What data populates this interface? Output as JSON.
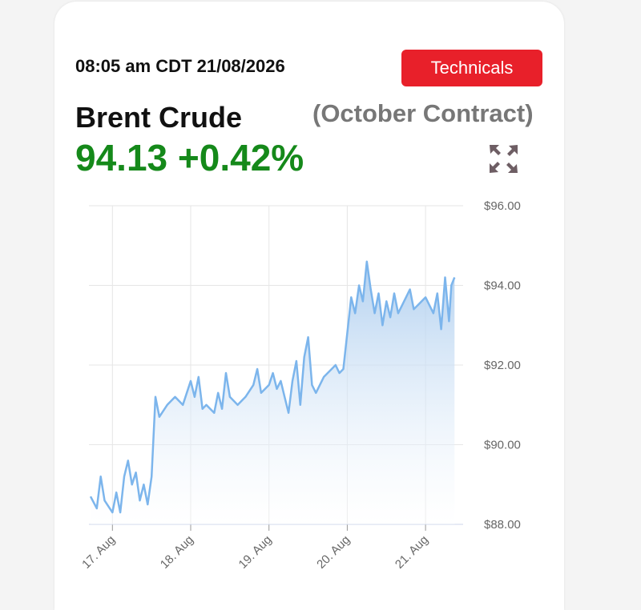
{
  "header": {
    "timestamp": "08:05 am CDT 21/08/2026",
    "button": "Technicals",
    "instrument": "Brent Crude",
    "contract": "(October Contract)",
    "price": "94.13",
    "change": "+0.42%"
  },
  "chart_data": {
    "type": "area",
    "color": "#7cb5ec",
    "grid": true,
    "x": [
      16.72,
      16.8,
      16.85,
      16.9,
      17.0,
      17.05,
      17.1,
      17.15,
      17.2,
      17.25,
      17.3,
      17.35,
      17.4,
      17.45,
      17.5,
      17.55,
      17.6,
      17.7,
      17.8,
      17.9,
      18.0,
      18.05,
      18.1,
      18.15,
      18.2,
      18.3,
      18.35,
      18.4,
      18.45,
      18.5,
      18.6,
      18.7,
      18.8,
      18.85,
      18.9,
      19.0,
      19.05,
      19.1,
      19.15,
      19.2,
      19.25,
      19.3,
      19.35,
      19.4,
      19.45,
      19.5,
      19.55,
      19.6,
      19.7,
      19.8,
      19.85,
      19.9,
      19.95,
      20.05,
      20.1,
      20.15,
      20.2,
      20.25,
      20.3,
      20.35,
      20.4,
      20.45,
      20.5,
      20.55,
      20.6,
      20.65,
      20.7,
      20.8,
      20.85,
      20.9,
      21.0,
      21.1,
      21.15,
      21.2,
      21.25,
      21.3,
      21.33,
      21.37
    ],
    "values": [
      88.7,
      88.4,
      89.2,
      88.6,
      88.3,
      88.8,
      88.3,
      89.2,
      89.6,
      89.0,
      89.3,
      88.6,
      89.0,
      88.5,
      89.2,
      91.2,
      90.7,
      91.0,
      91.2,
      91.0,
      91.6,
      91.2,
      91.7,
      90.9,
      91.0,
      90.8,
      91.3,
      90.9,
      91.8,
      91.2,
      91.0,
      91.2,
      91.5,
      91.9,
      91.3,
      91.5,
      91.8,
      91.4,
      91.6,
      91.2,
      90.8,
      91.6,
      92.1,
      91.0,
      92.2,
      92.7,
      91.5,
      91.3,
      91.7,
      91.9,
      92.0,
      91.8,
      91.9,
      93.7,
      93.3,
      94.0,
      93.6,
      94.6,
      93.9,
      93.3,
      93.8,
      93.0,
      93.6,
      93.2,
      93.8,
      93.3,
      93.5,
      93.9,
      93.4,
      93.5,
      93.7,
      93.3,
      93.8,
      92.9,
      94.2,
      93.1,
      94.0,
      94.2
    ],
    "xlim": [
      16.7,
      21.48
    ],
    "xticks": [
      {
        "value": 17,
        "label": "17. Aug"
      },
      {
        "value": 18,
        "label": "18. Aug"
      },
      {
        "value": 19,
        "label": "19. Aug"
      },
      {
        "value": 20,
        "label": "20. Aug"
      },
      {
        "value": 21,
        "label": "21. Aug"
      }
    ],
    "ylim": [
      88,
      96
    ],
    "yticks": [
      {
        "value": 88,
        "label": "$88.00"
      },
      {
        "value": 90,
        "label": "$90.00"
      },
      {
        "value": 92,
        "label": "$92.00"
      },
      {
        "value": 94,
        "label": "$94.00"
      },
      {
        "value": 96,
        "label": "$96.00"
      }
    ]
  }
}
